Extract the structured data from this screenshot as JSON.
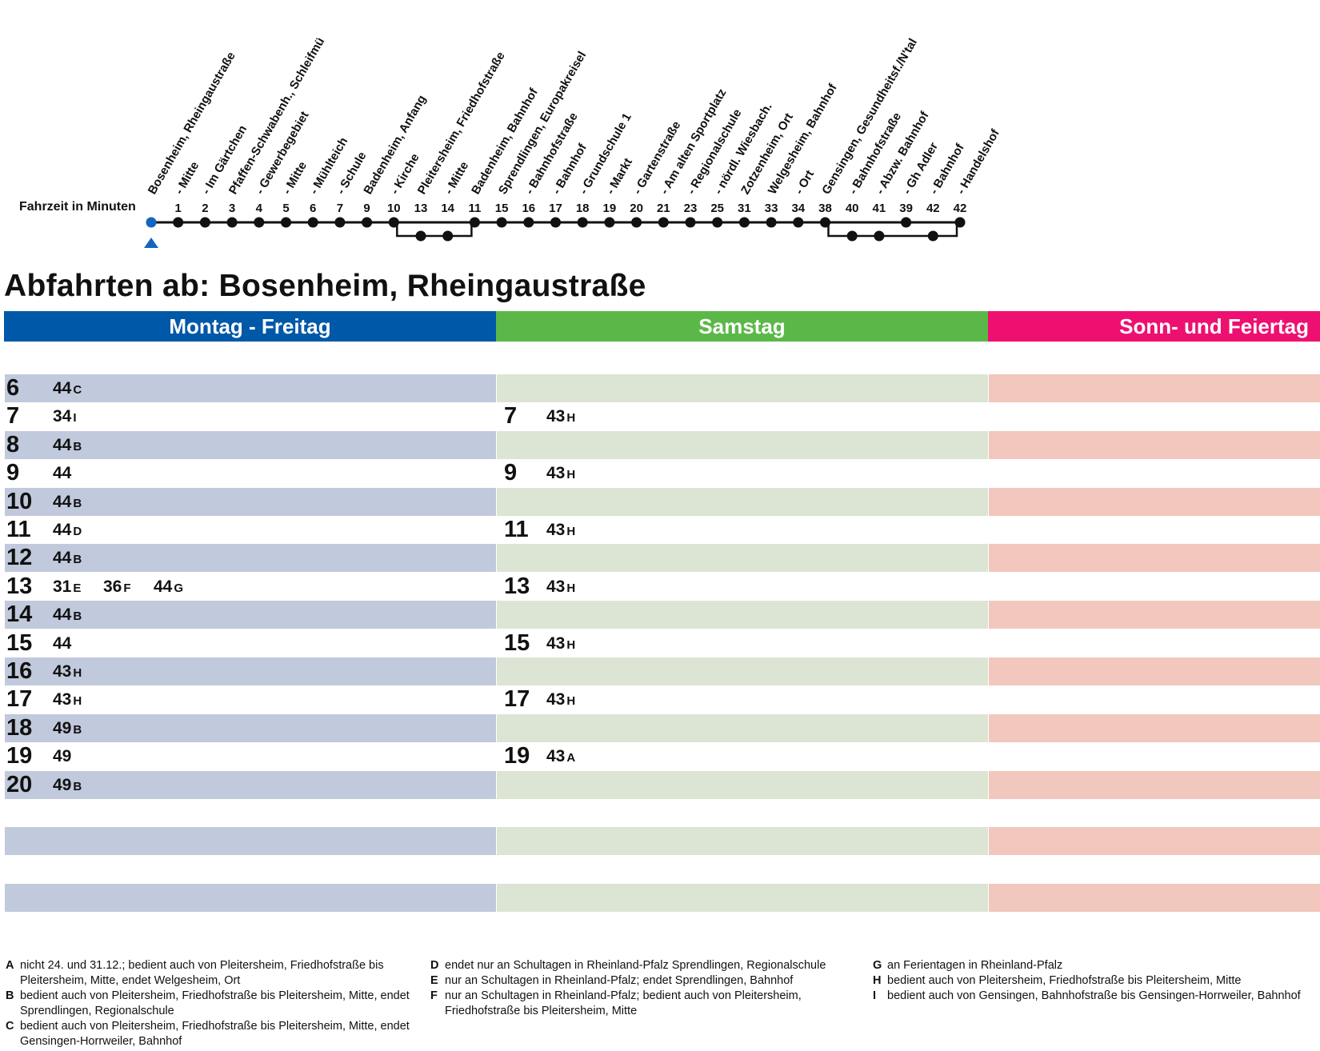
{
  "route": {
    "fahrzeit_label": "Fahrzeit in Minuten",
    "stops": [
      {
        "name": "Bosenheim, Rheingaustraße",
        "minutes": ""
      },
      {
        "name": "- Mitte",
        "minutes": "1"
      },
      {
        "name": "- Im Gärtchen",
        "minutes": "2"
      },
      {
        "name": "Pfaffen-Schwabenh., Schleifmü",
        "minutes": "3"
      },
      {
        "name": "- Gewerbegebiet",
        "minutes": "4"
      },
      {
        "name": "- Mitte",
        "minutes": "5"
      },
      {
        "name": "- Mühlteich",
        "minutes": "6"
      },
      {
        "name": "- Schule",
        "minutes": "7"
      },
      {
        "name": "Badenheim, Anfang",
        "minutes": "9"
      },
      {
        "name": "- Kirche",
        "minutes": "10"
      },
      {
        "name": "Pleitersheim, Friedhofstraße",
        "minutes": "13"
      },
      {
        "name": "- Mitte",
        "minutes": "14"
      },
      {
        "name": "Badenheim, Bahnhof",
        "minutes": "11"
      },
      {
        "name": "Sprendlingen, Europakreisel",
        "minutes": "15"
      },
      {
        "name": "- Bahnhofstraße",
        "minutes": "16"
      },
      {
        "name": "- Bahnhof",
        "minutes": "17"
      },
      {
        "name": "- Grundschule 1",
        "minutes": "18"
      },
      {
        "name": "- Markt",
        "minutes": "19"
      },
      {
        "name": "- Gartenstraße",
        "minutes": "20"
      },
      {
        "name": "- Am alten Sportplatz",
        "minutes": "21"
      },
      {
        "name": "- Regionalschule",
        "minutes": "23"
      },
      {
        "name": "- nördl. Wiesbach.",
        "minutes": "25"
      },
      {
        "name": "Zotzenheim, Ort",
        "minutes": "31"
      },
      {
        "name": "Welgesheim, Bahnhof",
        "minutes": "33"
      },
      {
        "name": "- Ort",
        "minutes": "34"
      },
      {
        "name": "Gensingen, Gesundheitsf./N'tal",
        "minutes": "38"
      },
      {
        "name": "- Bahnhofstraße",
        "minutes": "40"
      },
      {
        "name": "- Abzw. Bahnhof",
        "minutes": "41"
      },
      {
        "name": "- Gh Adler",
        "minutes": "39"
      },
      {
        "name": "- Bahnhof",
        "minutes": "42"
      },
      {
        "name": "- Handelshof",
        "minutes": "42"
      }
    ],
    "branches": [
      {
        "from": 9,
        "to": 12,
        "branch_stops": [
          10,
          11
        ]
      },
      {
        "from": 25,
        "to": 30,
        "branch_stops": [
          26,
          27,
          29
        ]
      }
    ],
    "colors": {
      "current_stop": "#1565c0",
      "line": "#111111"
    }
  },
  "heading": "Abfahrten ab: Bosenheim, Rheingaustraße",
  "days": [
    {
      "label": "Montag - Freitag",
      "header_color": "#0058a8",
      "band_color": "#c1c9dc"
    },
    {
      "label": "Samstag",
      "header_color": "#5bb848",
      "band_color": "#dce5d3"
    },
    {
      "label": "Sonn- und Feiertag",
      "header_color": "#ee1070",
      "band_color": "#f2c7bd"
    }
  ],
  "timetable": [
    {
      "weekday": {
        "hour": "6",
        "departures": [
          {
            "min": "44",
            "note": "C"
          }
        ]
      },
      "saturday": null
    },
    {
      "weekday": {
        "hour": "7",
        "departures": [
          {
            "min": "34",
            "note": "I"
          }
        ]
      },
      "saturday": {
        "hour": "7",
        "departures": [
          {
            "min": "43",
            "note": "H"
          }
        ]
      }
    },
    {
      "weekday": {
        "hour": "8",
        "departures": [
          {
            "min": "44",
            "note": "B"
          }
        ]
      },
      "saturday": null
    },
    {
      "weekday": {
        "hour": "9",
        "departures": [
          {
            "min": "44",
            "note": ""
          }
        ]
      },
      "saturday": {
        "hour": "9",
        "departures": [
          {
            "min": "43",
            "note": "H"
          }
        ]
      }
    },
    {
      "weekday": {
        "hour": "10",
        "departures": [
          {
            "min": "44",
            "note": "B"
          }
        ]
      },
      "saturday": null
    },
    {
      "weekday": {
        "hour": "11",
        "departures": [
          {
            "min": "44",
            "note": "D"
          }
        ]
      },
      "saturday": {
        "hour": "11",
        "departures": [
          {
            "min": "43",
            "note": "H"
          }
        ]
      }
    },
    {
      "weekday": {
        "hour": "12",
        "departures": [
          {
            "min": "44",
            "note": "B"
          }
        ]
      },
      "saturday": null
    },
    {
      "weekday": {
        "hour": "13",
        "departures": [
          {
            "min": "31",
            "note": "E"
          },
          {
            "min": "36",
            "note": "F"
          },
          {
            "min": "44",
            "note": "G"
          }
        ]
      },
      "saturday": {
        "hour": "13",
        "departures": [
          {
            "min": "43",
            "note": "H"
          }
        ]
      }
    },
    {
      "weekday": {
        "hour": "14",
        "departures": [
          {
            "min": "44",
            "note": "B"
          }
        ]
      },
      "saturday": null
    },
    {
      "weekday": {
        "hour": "15",
        "departures": [
          {
            "min": "44",
            "note": ""
          }
        ]
      },
      "saturday": {
        "hour": "15",
        "departures": [
          {
            "min": "43",
            "note": "H"
          }
        ]
      }
    },
    {
      "weekday": {
        "hour": "16",
        "departures": [
          {
            "min": "43",
            "note": "H"
          }
        ]
      },
      "saturday": null
    },
    {
      "weekday": {
        "hour": "17",
        "departures": [
          {
            "min": "43",
            "note": "H"
          }
        ]
      },
      "saturday": {
        "hour": "17",
        "departures": [
          {
            "min": "43",
            "note": "H"
          }
        ]
      }
    },
    {
      "weekday": {
        "hour": "18",
        "departures": [
          {
            "min": "49",
            "note": "B"
          }
        ]
      },
      "saturday": null
    },
    {
      "weekday": {
        "hour": "19",
        "departures": [
          {
            "min": "49",
            "note": ""
          }
        ]
      },
      "saturday": {
        "hour": "19",
        "departures": [
          {
            "min": "43",
            "note": "A"
          }
        ]
      }
    },
    {
      "weekday": {
        "hour": "20",
        "departures": [
          {
            "min": "49",
            "note": "B"
          }
        ]
      },
      "saturday": null
    }
  ],
  "footnotes": [
    [
      {
        "letter": "A",
        "text": "nicht 24. und 31.12.; bedient auch von Pleitersheim, Friedhofstraße bis Pleitersheim, Mitte, endet Welgesheim, Ort"
      },
      {
        "letter": "B",
        "text": "bedient auch von Pleitersheim, Friedhofstraße bis Pleitersheim, Mitte, endet Sprendlingen, Regionalschule"
      },
      {
        "letter": "C",
        "text": "bedient auch von Pleitersheim, Friedhofstraße bis Pleitersheim, Mitte, endet Gensingen-Horrweiler, Bahnhof"
      }
    ],
    [
      {
        "letter": "D",
        "text": "endet nur an Schultagen in Rheinland-Pfalz Sprendlingen, Regionalschule"
      },
      {
        "letter": "E",
        "text": "nur an Schultagen in Rheinland-Pfalz; endet Sprendlingen, Bahnhof"
      },
      {
        "letter": "F",
        "text": "nur an Schultagen in Rheinland-Pfalz; bedient auch von Pleitersheim, Friedhofstraße bis Pleitersheim, Mitte"
      }
    ],
    [
      {
        "letter": "G",
        "text": "an Ferientagen in Rheinland-Pfalz"
      },
      {
        "letter": "H",
        "text": "bedient auch von Pleitersheim, Friedhofstraße bis Pleitersheim, Mitte"
      },
      {
        "letter": "I",
        "text": "bedient auch von Gensingen, Bahnhofstraße bis Gensingen-Horrweiler, Bahnhof"
      }
    ]
  ]
}
